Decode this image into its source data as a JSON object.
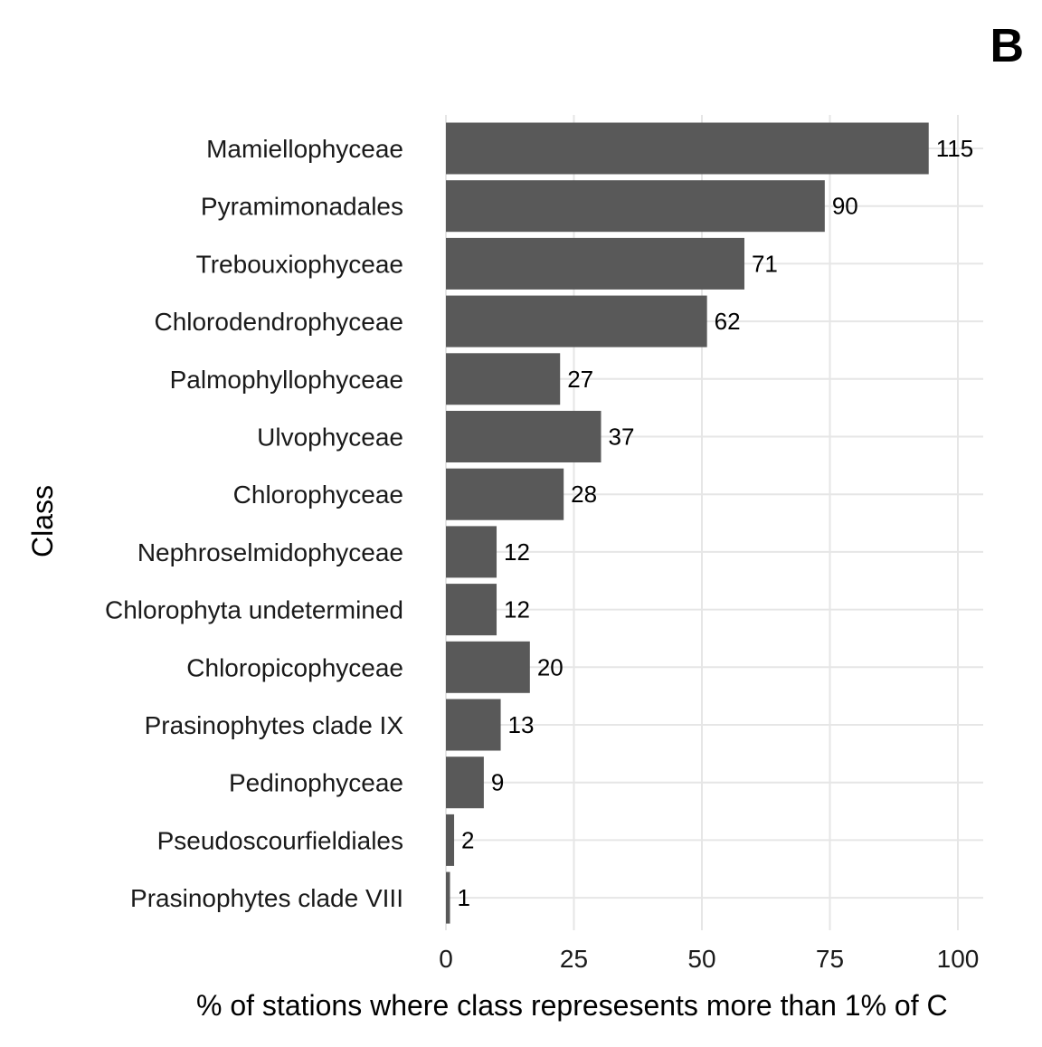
{
  "panel_label": "B",
  "chart_data": {
    "type": "bar",
    "orientation": "horizontal",
    "ylabel": "Class",
    "xlabel": "% of stations where class represesents more than 1% of C",
    "xlim": [
      0,
      105
    ],
    "xticks": [
      0,
      25,
      50,
      75,
      100
    ],
    "grid": true,
    "categories": [
      "Mamiellophyceae",
      "Pyramimonadales",
      "Trebouxiophyceae",
      "Chlorodendrophyceae",
      "Palmophyllophyceae",
      "Ulvophyceae",
      "Chlorophyceae",
      "Nephroselmidophyceae",
      "Chlorophyta undetermined",
      "Chloropicophyceae",
      "Prasinophytes clade IX",
      "Pedinophyceae",
      "Pseudoscourfieldiales",
      "Prasinophytes clade VIII"
    ],
    "values": [
      94.3,
      74.0,
      58.3,
      51.0,
      22.3,
      30.3,
      23.0,
      9.9,
      9.9,
      16.4,
      10.7,
      7.4,
      1.6,
      0.8
    ],
    "bar_labels": [
      "115",
      "90",
      "71",
      "62",
      "27",
      "37",
      "28",
      "12",
      "12",
      "20",
      "13",
      "9",
      "2",
      "1"
    ],
    "bar_color": "#595959"
  }
}
